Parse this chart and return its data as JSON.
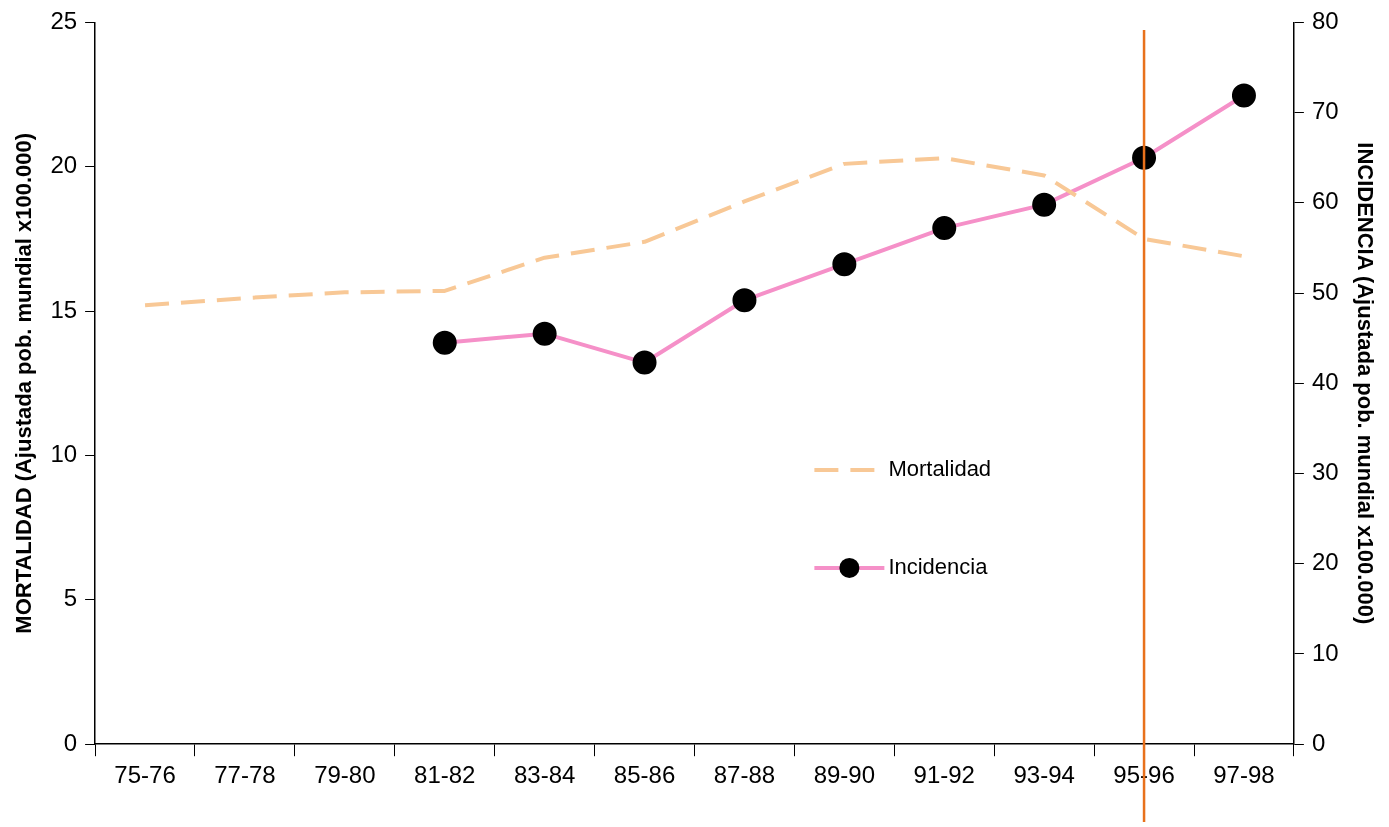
{
  "chart_data": {
    "type": "line",
    "ylabel": "MORTALIDAD (Ajustada pob. mundial x100.000)",
    "y2label": "INCIDENCIA (Ajustada pob. mundial x100.000)",
    "categories": [
      "75-76",
      "77-78",
      "79-80",
      "81-82",
      "83-84",
      "85-86",
      "87-88",
      "89-90",
      "91-92",
      "93-94",
      "95-96",
      "97-98"
    ],
    "series": [
      {
        "name": "Mortalidad",
        "color": "#f8c896",
        "line_style": "dashed",
        "marker": "none",
        "values": [
          15.2,
          15.45,
          15.65,
          15.7,
          16.85,
          17.4,
          18.8,
          20.1,
          20.3,
          19.7,
          17.5,
          16.9
        ]
      },
      {
        "name": "Incidencia",
        "color": "#f590c8",
        "line_style": "solid",
        "marker": "circle",
        "axis": "y2",
        "values": [
          null,
          null,
          null,
          44.5,
          45.5,
          42.3,
          49.2,
          53.2,
          57.2,
          59.8,
          65,
          71.9
        ]
      }
    ],
    "ylim": [
      0,
      25
    ],
    "yticks": [
      0,
      5,
      10,
      15,
      20,
      25
    ],
    "y2lim": [
      0,
      80
    ],
    "y2ticks": [
      0,
      10,
      20,
      30,
      40,
      50,
      60,
      70,
      80
    ],
    "ref_lines": [
      {
        "axis": "x",
        "value": "95-96",
        "color": "#e8711c"
      }
    ],
    "legend": "right",
    "grid": false
  }
}
